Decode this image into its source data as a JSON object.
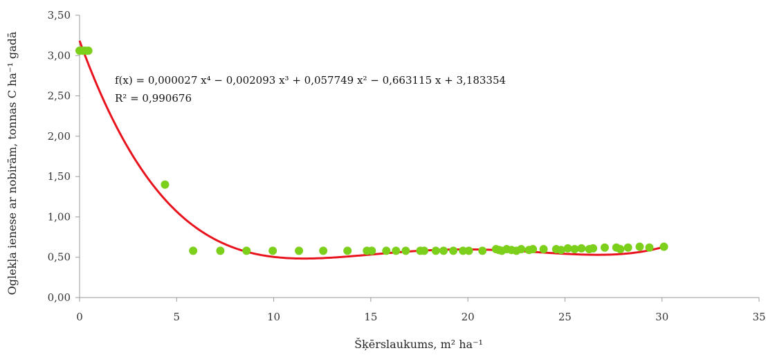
{
  "chart_data": {
    "type": "scatter",
    "xlabel": "Šķērslaukums, m² ha⁻¹",
    "ylabel": "Oglekļa ienese ar nobirām, tonnas C ha⁻¹ gadā",
    "xlim": [
      0,
      35
    ],
    "ylim": [
      0,
      3.5
    ],
    "xticks": [
      0,
      5,
      10,
      15,
      20,
      25,
      30,
      35
    ],
    "xtick_labels": [
      "0",
      "5",
      "10",
      "15",
      "20",
      "25",
      "30",
      "35"
    ],
    "yticks": [
      0,
      0.5,
      1.0,
      1.5,
      2.0,
      2.5,
      3.0,
      3.5
    ],
    "ytick_labels": [
      "0,00",
      "0,50",
      "1,00",
      "1,50",
      "2,00",
      "2,50",
      "3,00",
      "3,50"
    ],
    "grid": false,
    "series": [
      {
        "kind": "scatter",
        "color": "#7ccf1a",
        "x": [
          0.0,
          0.15,
          0.3,
          0.45,
          4.4,
          5.85,
          7.25,
          8.6,
          9.95,
          11.3,
          12.55,
          13.8,
          14.8,
          15.05,
          15.8,
          16.3,
          16.8,
          17.55,
          17.75,
          18.35,
          18.75,
          19.25,
          19.75,
          20.05,
          20.75,
          21.45,
          21.6,
          21.75,
          22.0,
          22.25,
          22.5,
          22.75,
          23.15,
          23.35,
          23.9,
          24.55,
          24.8,
          25.15,
          25.5,
          25.85,
          26.25,
          26.45,
          27.05,
          27.65,
          27.85,
          28.25,
          28.85,
          29.35,
          30.1
        ],
        "y": [
          3.06,
          3.06,
          3.06,
          3.06,
          1.4,
          0.58,
          0.58,
          0.58,
          0.58,
          0.58,
          0.58,
          0.58,
          0.58,
          0.58,
          0.58,
          0.58,
          0.58,
          0.58,
          0.58,
          0.58,
          0.58,
          0.58,
          0.58,
          0.58,
          0.58,
          0.6,
          0.59,
          0.58,
          0.6,
          0.59,
          0.58,
          0.6,
          0.59,
          0.6,
          0.6,
          0.6,
          0.59,
          0.61,
          0.6,
          0.61,
          0.6,
          0.61,
          0.62,
          0.62,
          0.6,
          0.62,
          0.63,
          0.62,
          0.63
        ]
      },
      {
        "kind": "trendline",
        "color": "#e8131c",
        "fit": "polynomial-4",
        "coefficients": [
          3.183354,
          -0.663115,
          0.057749,
          -0.002093,
          2.7e-05
        ],
        "x_range": [
          0,
          30.1
        ]
      }
    ],
    "annotations": [
      "f(x) = 0,000027 x⁴ − 0,002093 x³ + 0,057749 x² − 0,663115 x + 3,183354",
      "R² = 0,990676"
    ]
  }
}
